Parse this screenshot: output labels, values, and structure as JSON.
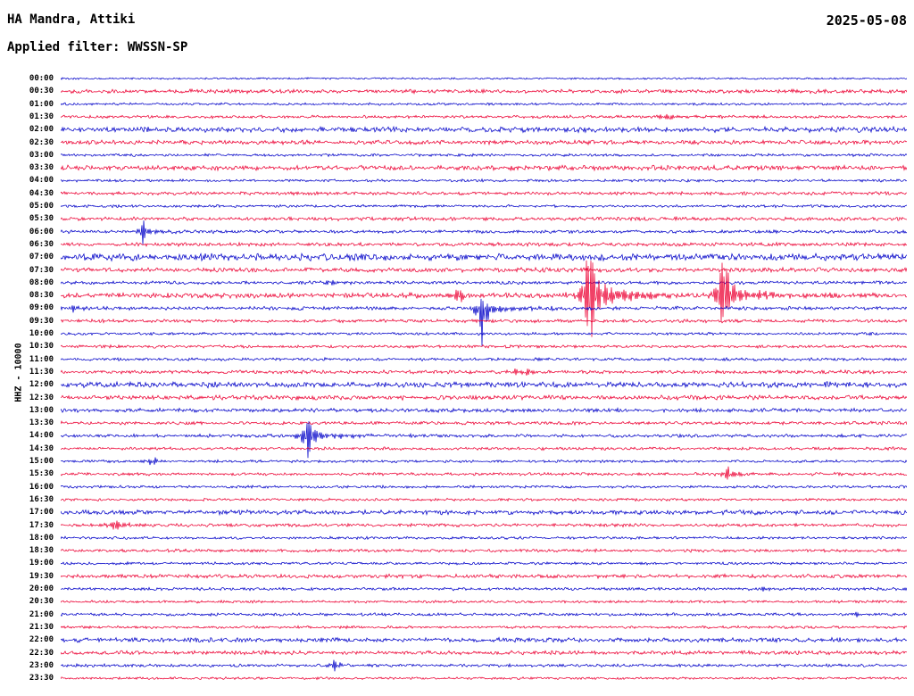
{
  "header": {
    "station": "HA Mandra, Attiki",
    "date": "2025-05-08",
    "filter_label": "Applied filter: WWSSN-SP"
  },
  "axis": {
    "left_label": "HHZ - 10000"
  },
  "palette": {
    "blue": "#0000c8",
    "red": "#ec0033"
  },
  "chart_data": {
    "type": "line",
    "title": "HA Mandra, Attiki",
    "subtitle": "Applied filter: WWSSN-SP",
    "date": "2025-05-08",
    "ylabel": "HHZ - 10000",
    "row_interval_minutes": 30,
    "legend": "alternating blue/red half-hour traces, 48 rows 00:00-23:30",
    "rows": [
      {
        "time": "00:00",
        "color": "blue",
        "noise": 0.6,
        "events": []
      },
      {
        "time": "00:30",
        "color": "red",
        "noise": 1.3,
        "events": []
      },
      {
        "time": "01:00",
        "color": "blue",
        "noise": 0.8,
        "events": []
      },
      {
        "time": "01:30",
        "color": "red",
        "noise": 1.0,
        "events": [
          {
            "x": 0.72,
            "amp": 4,
            "w": 18
          }
        ]
      },
      {
        "time": "02:00",
        "color": "blue",
        "noise": 1.8,
        "events": []
      },
      {
        "time": "02:30",
        "color": "red",
        "noise": 1.4,
        "events": []
      },
      {
        "time": "03:00",
        "color": "blue",
        "noise": 0.9,
        "events": []
      },
      {
        "time": "03:30",
        "color": "red",
        "noise": 1.6,
        "events": []
      },
      {
        "time": "04:00",
        "color": "blue",
        "noise": 0.9,
        "events": []
      },
      {
        "time": "04:30",
        "color": "red",
        "noise": 1.1,
        "events": []
      },
      {
        "time": "05:00",
        "color": "blue",
        "noise": 0.9,
        "events": []
      },
      {
        "time": "05:30",
        "color": "red",
        "noise": 1.2,
        "events": []
      },
      {
        "time": "06:00",
        "color": "blue",
        "noise": 1.1,
        "events": [
          {
            "x": 0.097,
            "amp": 15,
            "w": 10
          }
        ]
      },
      {
        "time": "06:30",
        "color": "red",
        "noise": 1.2,
        "events": []
      },
      {
        "time": "07:00",
        "color": "blue",
        "noise": 2.3,
        "events": []
      },
      {
        "time": "07:30",
        "color": "red",
        "noise": 1.5,
        "events": []
      },
      {
        "time": "08:00",
        "color": "blue",
        "noise": 1.1,
        "events": [
          {
            "x": 0.318,
            "amp": 3,
            "w": 12
          }
        ]
      },
      {
        "time": "08:30",
        "color": "red",
        "noise": 1.7,
        "events": [
          {
            "x": 0.471,
            "amp": 11,
            "w": 10
          },
          {
            "x": 0.625,
            "amp": 88,
            "w": 12,
            "su": 1.12
          },
          {
            "x": 0.783,
            "amp": 50,
            "w": 12,
            "su": 1.4
          }
        ]
      },
      {
        "time": "09:00",
        "color": "blue",
        "noise": 1.2,
        "events": [
          {
            "x": 0.015,
            "amp": 4,
            "w": 8
          },
          {
            "x": 0.498,
            "amp": 62,
            "w": 10,
            "su": 0.22
          }
        ]
      },
      {
        "time": "09:30",
        "color": "red",
        "noise": 1.1,
        "events": []
      },
      {
        "time": "10:00",
        "color": "blue",
        "noise": 0.9,
        "events": []
      },
      {
        "time": "10:30",
        "color": "red",
        "noise": 1.0,
        "events": []
      },
      {
        "time": "11:00",
        "color": "blue",
        "noise": 1.0,
        "events": []
      },
      {
        "time": "11:30",
        "color": "red",
        "noise": 1.2,
        "events": [
          {
            "x": 0.538,
            "amp": 5,
            "w": 10
          },
          {
            "x": 0.553,
            "amp": 5,
            "w": 8
          }
        ]
      },
      {
        "time": "12:00",
        "color": "blue",
        "noise": 1.9,
        "events": []
      },
      {
        "time": "12:30",
        "color": "red",
        "noise": 1.5,
        "events": []
      },
      {
        "time": "13:00",
        "color": "blue",
        "noise": 1.3,
        "events": []
      },
      {
        "time": "13:30",
        "color": "red",
        "noise": 1.1,
        "events": []
      },
      {
        "time": "14:00",
        "color": "blue",
        "noise": 1.1,
        "events": [
          {
            "x": 0.292,
            "amp": 30,
            "w": 12
          }
        ]
      },
      {
        "time": "14:30",
        "color": "red",
        "noise": 1.0,
        "events": []
      },
      {
        "time": "15:00",
        "color": "blue",
        "noise": 0.9,
        "events": [
          {
            "x": 0.108,
            "amp": 7,
            "w": 10
          }
        ]
      },
      {
        "time": "15:30",
        "color": "red",
        "noise": 1.0,
        "events": [
          {
            "x": 0.788,
            "amp": 9,
            "w": 12
          }
        ]
      },
      {
        "time": "16:00",
        "color": "blue",
        "noise": 0.9,
        "events": []
      },
      {
        "time": "16:30",
        "color": "red",
        "noise": 0.9,
        "events": []
      },
      {
        "time": "17:00",
        "color": "blue",
        "noise": 1.5,
        "events": []
      },
      {
        "time": "17:30",
        "color": "red",
        "noise": 1.1,
        "events": [
          {
            "x": 0.065,
            "amp": 9,
            "w": 12
          }
        ]
      },
      {
        "time": "18:00",
        "color": "blue",
        "noise": 0.9,
        "events": []
      },
      {
        "time": "18:30",
        "color": "red",
        "noise": 1.0,
        "events": []
      },
      {
        "time": "19:00",
        "color": "blue",
        "noise": 0.9,
        "events": []
      },
      {
        "time": "19:30",
        "color": "red",
        "noise": 1.3,
        "events": []
      },
      {
        "time": "20:00",
        "color": "blue",
        "noise": 1.0,
        "events": [
          {
            "x": 0.83,
            "amp": 4,
            "w": 6
          }
        ]
      },
      {
        "time": "20:30",
        "color": "red",
        "noise": 0.9,
        "events": []
      },
      {
        "time": "21:00",
        "color": "blue",
        "noise": 1.0,
        "events": [
          {
            "x": 0.941,
            "amp": 3.5,
            "w": 8
          }
        ]
      },
      {
        "time": "21:30",
        "color": "red",
        "noise": 0.9,
        "events": []
      },
      {
        "time": "22:00",
        "color": "blue",
        "noise": 1.5,
        "events": []
      },
      {
        "time": "22:30",
        "color": "red",
        "noise": 1.3,
        "events": []
      },
      {
        "time": "23:00",
        "color": "blue",
        "noise": 1.0,
        "events": [
          {
            "x": 0.324,
            "amp": 8,
            "w": 8
          }
        ]
      },
      {
        "time": "23:30",
        "color": "red",
        "noise": 0.8,
        "events": []
      }
    ]
  }
}
